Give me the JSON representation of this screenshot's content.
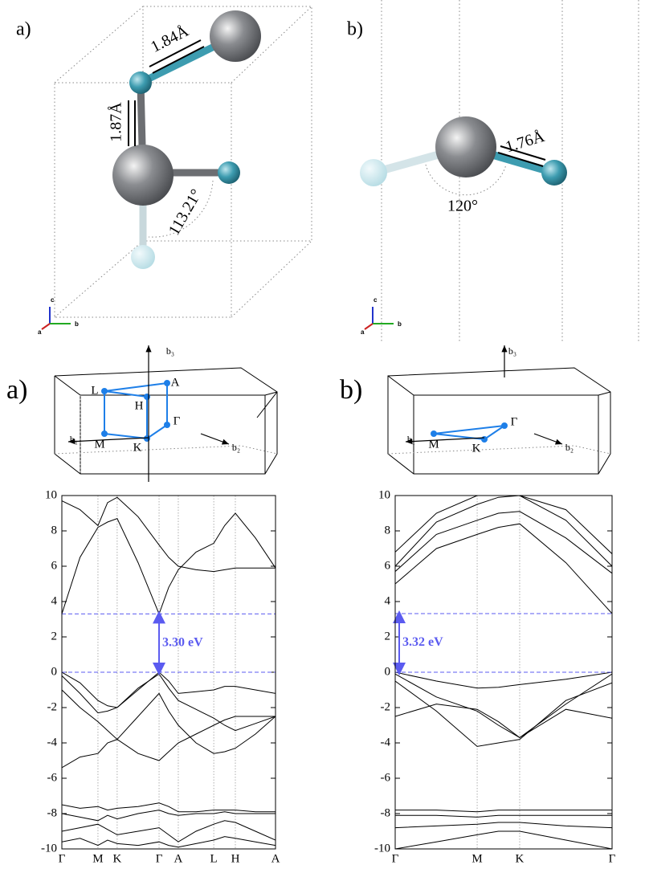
{
  "structures": [
    {
      "label": "a)",
      "bond_1": "1.84Å",
      "bond_2": "1.87Å",
      "angle": "113.21°",
      "axes": [
        "a",
        "b",
        "c"
      ]
    },
    {
      "label": "b)",
      "bond_1": "1.76Å",
      "angle": "120°",
      "axes": [
        "a",
        "b",
        "c"
      ]
    }
  ],
  "brillouin_zones": [
    {
      "label": "a)",
      "points": [
        "L",
        "A",
        "H",
        "Γ",
        "M",
        "K"
      ],
      "vectors": [
        "b₁",
        "b₂",
        "b₃"
      ]
    },
    {
      "label": "b)",
      "points": [
        "Γ",
        "M",
        "K"
      ],
      "vectors": [
        "b₁",
        "b₂",
        "b₃"
      ]
    }
  ],
  "chart_data": [
    {
      "type": "line",
      "line_color": "#000000",
      "gap_color": "#5b5bf0",
      "x": [
        0,
        0.085,
        0.169,
        0.214,
        0.259,
        0.357,
        0.455,
        0.5,
        0.545,
        0.628,
        0.711,
        0.762,
        0.812,
        0.906,
        1.0
      ],
      "xlim": [
        0,
        1
      ],
      "xticks": [
        {
          "value": 0,
          "label": "Γ"
        },
        {
          "value": 0.169,
          "label": "M"
        },
        {
          "value": 0.259,
          "label": "K"
        },
        {
          "value": 0.455,
          "label": "Γ"
        },
        {
          "value": 0.545,
          "label": "A"
        },
        {
          "value": 0.711,
          "label": "L"
        },
        {
          "value": 0.812,
          "label": "H"
        },
        {
          "value": 1.0,
          "label": "A"
        }
      ],
      "ylim": [
        -10,
        10
      ],
      "yticks": [
        -10,
        -8,
        -6,
        -4,
        -2,
        0,
        2,
        4,
        6,
        8,
        10
      ],
      "series": [
        {
          "values": [
            3.3,
            6.5,
            8.2,
            8.5,
            8.7,
            6.2,
            3.3,
            4.8,
            5.8,
            6.8,
            7.3,
            8.3,
            9.0,
            7.6,
            5.9
          ]
        },
        {
          "values": [
            9.7,
            9.2,
            8.3,
            9.6,
            9.9,
            8.8,
            7.2,
            6.5,
            6.0,
            5.8,
            5.7,
            5.8,
            5.9,
            5.9,
            5.9
          ]
        },
        {
          "values": [
            0,
            -0.6,
            -1.6,
            -1.9,
            -2.0,
            -1.0,
            0,
            -0.5,
            -1.2,
            -1.1,
            -1.0,
            -0.8,
            -0.8,
            -1.0,
            -1.2
          ]
        },
        {
          "values": [
            -0.2,
            -1.2,
            -2.3,
            -2.2,
            -2.0,
            -0.9,
            -0.1,
            -0.9,
            -1.6,
            -2.1,
            -2.6,
            -3.0,
            -3.3,
            -2.9,
            -2.5
          ]
        },
        {
          "values": [
            -1.0,
            -2.0,
            -2.8,
            -3.3,
            -3.8,
            -2.5,
            -1.2,
            -2.2,
            -3.0,
            -4.0,
            -4.6,
            -4.5,
            -4.3,
            -3.5,
            -2.5
          ]
        },
        {
          "values": [
            -5.4,
            -4.8,
            -4.6,
            -4.0,
            -3.8,
            -4.6,
            -5.0,
            -4.5,
            -4.0,
            -3.5,
            -3.0,
            -2.7,
            -2.5,
            -2.5,
            -2.5
          ]
        },
        {
          "values": [
            -7.5,
            -7.7,
            -7.6,
            -7.8,
            -7.7,
            -7.6,
            -7.4,
            -7.6,
            -7.9,
            -7.9,
            -7.8,
            -7.8,
            -7.8,
            -7.9,
            -7.9
          ]
        },
        {
          "values": [
            -8.0,
            -8.2,
            -8.4,
            -8.1,
            -8.3,
            -8.0,
            -7.8,
            -8.0,
            -8.1,
            -8.0,
            -8.0,
            -7.9,
            -8.0,
            -8.0,
            -8.0
          ]
        },
        {
          "values": [
            -9.0,
            -8.8,
            -8.6,
            -8.9,
            -9.2,
            -9.0,
            -8.8,
            -9.2,
            -9.6,
            -9.0,
            -8.6,
            -8.4,
            -8.5,
            -9.0,
            -9.5
          ]
        },
        {
          "values": [
            -9.6,
            -9.4,
            -9.8,
            -9.5,
            -9.7,
            -9.8,
            -9.6,
            -9.8,
            -9.9,
            -9.7,
            -9.5,
            -9.3,
            -9.4,
            -9.6,
            -9.8
          ]
        }
      ],
      "gap": {
        "text": "3.30 eV",
        "x": 0.455,
        "from": 0,
        "to": 3.3
      }
    },
    {
      "type": "line",
      "line_color": "#000000",
      "gap_color": "#5b5bf0",
      "x": [
        0,
        0.19,
        0.378,
        0.476,
        0.574,
        0.787,
        1.0
      ],
      "xlim": [
        0,
        1
      ],
      "xticks": [
        {
          "value": 0,
          "label": "Γ"
        },
        {
          "value": 0.378,
          "label": "M"
        },
        {
          "value": 0.574,
          "label": "K"
        },
        {
          "value": 1.0,
          "label": "Γ"
        }
      ],
      "ylim": [
        -10,
        10
      ],
      "yticks": [
        -10,
        -8,
        -6,
        -4,
        -2,
        0,
        2,
        4,
        6,
        8,
        10
      ],
      "series": [
        {
          "values": [
            5.0,
            7.0,
            7.8,
            8.2,
            8.4,
            6.2,
            3.32
          ]
        },
        {
          "values": [
            5.7,
            7.8,
            8.6,
            9.0,
            9.1,
            7.6,
            5.6
          ]
        },
        {
          "values": [
            6.0,
            8.5,
            9.5,
            9.9,
            10,
            8.6,
            6.0
          ]
        },
        {
          "values": [
            6.8,
            9.0,
            10,
            10,
            10,
            9.2,
            6.7
          ]
        },
        {
          "values": [
            0,
            -0.5,
            -0.9,
            -0.85,
            -0.7,
            -0.4,
            0
          ]
        },
        {
          "values": [
            -0.1,
            -1.4,
            -2.2,
            -3.0,
            -3.7,
            -1.8,
            -0.1
          ]
        },
        {
          "values": [
            -0.5,
            -2.2,
            -4.2,
            -4.0,
            -3.8,
            -1.6,
            -0.6
          ]
        },
        {
          "values": [
            -2.5,
            -1.8,
            -2.1,
            -2.8,
            -3.7,
            -2.1,
            -2.6
          ]
        },
        {
          "values": [
            -7.8,
            -7.8,
            -7.9,
            -7.8,
            -7.8,
            -7.8,
            -7.8
          ]
        },
        {
          "values": [
            -8.1,
            -8.1,
            -8.2,
            -8.1,
            -8.1,
            -8.1,
            -8.1
          ]
        },
        {
          "values": [
            -8.8,
            -8.7,
            -8.6,
            -8.5,
            -8.5,
            -8.7,
            -8.8
          ]
        },
        {
          "values": [
            -10,
            -9.6,
            -9.2,
            -9.0,
            -9.0,
            -9.5,
            -10
          ]
        }
      ],
      "gap": {
        "text": "3.32 eV",
        "x": 0,
        "from": 0,
        "to": 3.32
      }
    }
  ]
}
